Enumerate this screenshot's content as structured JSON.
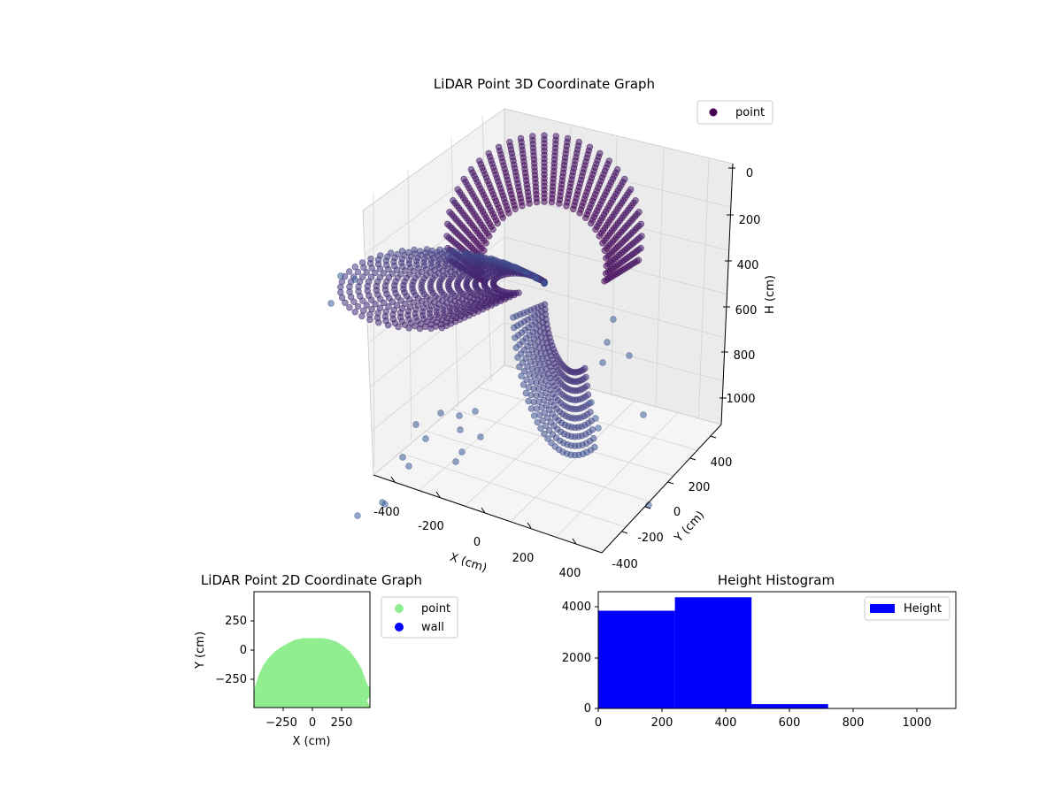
{
  "chart_data": [
    {
      "type": "scatter",
      "projection": "3d",
      "title": "LiDAR Point 3D Coordinate Graph",
      "xlabel": "X (cm)",
      "ylabel": "Y (cm)",
      "zlabel": "H (cm)",
      "xlim": [
        -500,
        500
      ],
      "ylim": [
        -500,
        500
      ],
      "zlim": [
        0,
        1100
      ],
      "z_inverted": true,
      "x_ticks": [
        "-400",
        "-200",
        "0",
        "200",
        "400"
      ],
      "y_ticks": [
        "400",
        "200",
        "0",
        "-200",
        "-400"
      ],
      "z_ticks": [
        "0",
        "200",
        "400",
        "600",
        "800",
        "1000"
      ],
      "legend": [
        {
          "label": "point",
          "color": "#440154"
        }
      ],
      "legend_position": "top-right",
      "colormap": "viridis (by height)",
      "grid": true,
      "shape": "dome of LiDAR returns, near ceiling at top, sparse points down to ~1000 cm"
    },
    {
      "type": "scatter",
      "title": "LiDAR Point 2D Coordinate Graph",
      "xlabel": "X (cm)",
      "ylabel": "Y (cm)",
      "xlim": [
        -500,
        500
      ],
      "ylim": [
        -500,
        500
      ],
      "x_ticks": [
        "−250",
        "0",
        "250"
      ],
      "y_ticks": [
        "250",
        "0",
        "−250"
      ],
      "series": [
        {
          "name": "point",
          "color": "#90ee90",
          "region": "half-disc, y from -500 to about 90"
        },
        {
          "name": "wall",
          "color": "#0000ff"
        }
      ],
      "legend_position": "outside-right"
    },
    {
      "type": "bar",
      "subtype": "histogram",
      "title": "Height Histogram",
      "xlim": [
        0,
        1120
      ],
      "ylim": [
        0,
        4600
      ],
      "x_ticks": [
        "0",
        "200",
        "400",
        "600",
        "800",
        "1000"
      ],
      "y_ticks": [
        "0",
        "2000",
        "4000"
      ],
      "bin_edges": [
        0,
        240,
        480,
        720,
        960,
        1120
      ],
      "values": [
        3850,
        4380,
        170,
        10,
        8
      ],
      "series": [
        {
          "name": "Height",
          "color": "#0000ff"
        }
      ],
      "legend_position": "top-right"
    }
  ]
}
